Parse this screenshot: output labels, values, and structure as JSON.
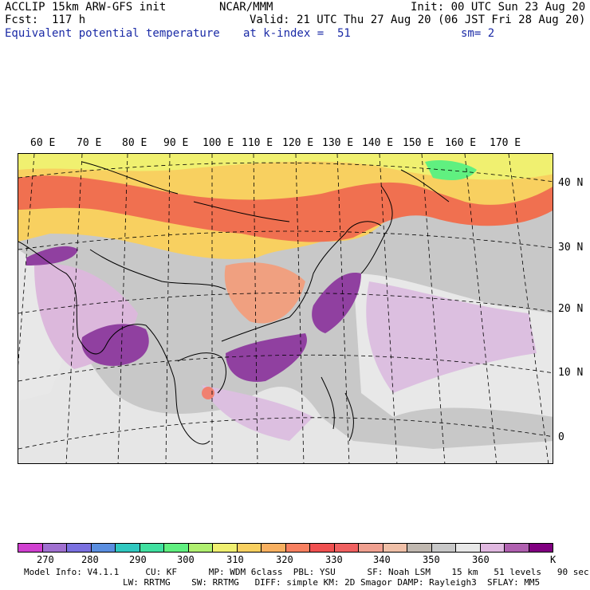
{
  "header": {
    "model_line": "ACCLIP 15km ARW-GFS init",
    "org": "NCAR/MMM",
    "init": "Init: 00 UTC Sun 23 Aug 20",
    "fcst": "Fcst:  117 h",
    "valid": "Valid: 21 UTC Thu 27 Aug 20 (06 JST Fri 28 Aug 20)",
    "field": "Equivalent potential temperature",
    "level": "at k-index =  51",
    "smooth": "sm= 2"
  },
  "map": {
    "lon_labels": [
      "60 E",
      "70 E",
      "80 E",
      "90 E",
      "100 E",
      "110 E",
      "120 E",
      "130 E",
      "140 E",
      "150 E",
      "160 E",
      "170 E"
    ],
    "lat_labels": [
      "40 N",
      "30 N",
      "20 N",
      "10 N",
      "0"
    ]
  },
  "colorbar": {
    "colors": [
      "#d040d0",
      "#a070d0",
      "#7a70e0",
      "#5a8ee0",
      "#30c8c0",
      "#40e0a0",
      "#60f080",
      "#b0f070",
      "#f0f070",
      "#f8d060",
      "#f8b060",
      "#f88060",
      "#f05050",
      "#f06060",
      "#f0a090",
      "#f0c0a8",
      "#c0b8b0",
      "#c8c8c8",
      "#e8e8e8",
      "#e0b8e0",
      "#b060b0",
      "#800080"
    ],
    "labels": [
      "270",
      "280",
      "290",
      "300",
      "310",
      "320",
      "330",
      "340",
      "350",
      "360",
      "K"
    ]
  },
  "footer": {
    "line1": "Model Info: V4.1.1     CU: KF      MP: WDM 6class  PBL: YSU      SF: Noah LSM    15 km   51 levels   90 sec",
    "line2": "LW: RRTMG    SW: RRTMG   DIFF: simple KM: 2D Smagor DAMP: Rayleigh3  SFLAY: MM5"
  }
}
